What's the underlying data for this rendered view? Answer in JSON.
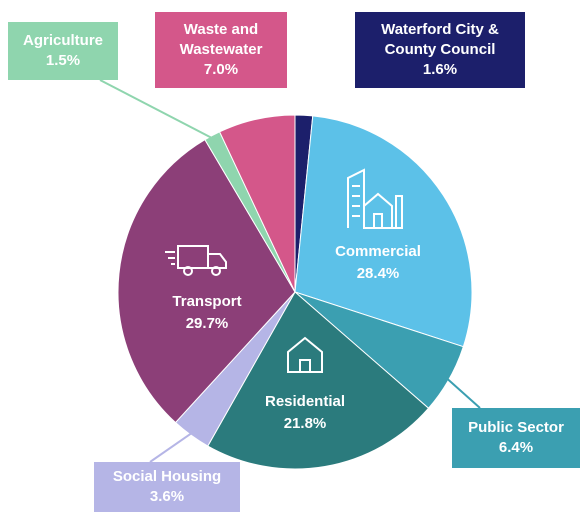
{
  "chart_data": {
    "type": "pie",
    "categories": [
      "Waterford City & County Council",
      "Commercial",
      "Public Sector",
      "Residential",
      "Social Housing",
      "Transport",
      "Agriculture",
      "Waste and Wastewater"
    ],
    "values": [
      1.6,
      28.4,
      6.4,
      21.8,
      3.6,
      29.7,
      1.5,
      7.0
    ],
    "value_labels": [
      "1.6%",
      "28.4%",
      "6.4%",
      "21.8%",
      "3.6%",
      "29.7%",
      "1.5%",
      "7.0%"
    ],
    "colors": [
      "#1c1f6b",
      "#5cc1e8",
      "#3b9fb1",
      "#2b7b7d",
      "#b5b5e6",
      "#8c3f78",
      "#8fd5ae",
      "#d4578a"
    ]
  }
}
